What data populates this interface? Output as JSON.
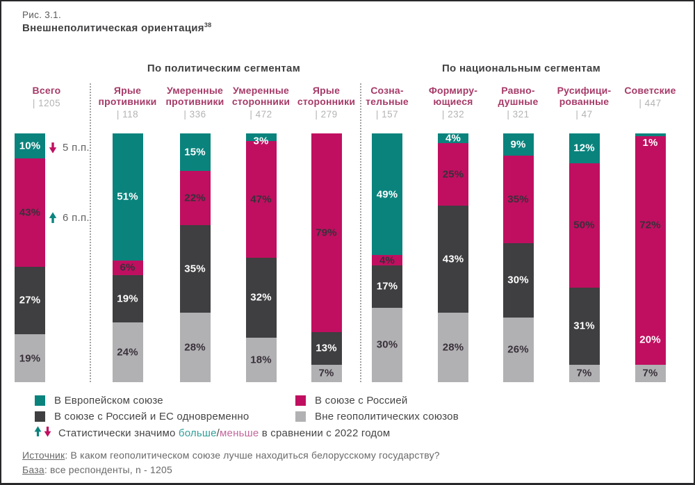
{
  "palette": {
    "eu": "#0a837d",
    "russia": "#c00f60",
    "both": "#3f3e40",
    "none": "#b1b1b3",
    "header_text": "#a63a68",
    "count_text": "#b3b3b5",
    "more_text": "#2f9e99",
    "less_text": "#c2679c"
  },
  "title": {
    "line1": "Рис. 3.1.",
    "line2": "Внешнеполитическая ориентация",
    "footnote": "38"
  },
  "sections": [
    {
      "label": "По политическим сегментам"
    },
    {
      "label": "По национальным сегментам"
    }
  ],
  "annotations": [
    {
      "dir": "down",
      "color": "russia",
      "text": "5 п.п."
    },
    {
      "dir": "up",
      "color": "eu",
      "text": "6 п.п."
    }
  ],
  "columns": [
    {
      "name_lines": [
        "Всего"
      ],
      "count": "| 1205",
      "segments": [
        {
          "value": 10,
          "label": "10%",
          "color": "eu",
          "text": "light"
        },
        {
          "value": 43,
          "label": "43%",
          "color": "russia",
          "text": "dark"
        },
        {
          "value": 27,
          "label": "27%",
          "color": "both",
          "text": "light"
        },
        {
          "value": 19,
          "label": "19%",
          "color": "none",
          "text": "dark"
        }
      ]
    },
    {
      "name_lines": [
        "Ярые",
        "противники"
      ],
      "count": "| 118",
      "segments": [
        {
          "value": 51,
          "label": "51%",
          "color": "eu",
          "text": "light"
        },
        {
          "value": 6,
          "label": "6%",
          "color": "russia",
          "text": "dark"
        },
        {
          "value": 19,
          "label": "19%",
          "color": "both",
          "text": "light"
        },
        {
          "value": 24,
          "label": "24%",
          "color": "none",
          "text": "dark"
        }
      ]
    },
    {
      "name_lines": [
        "Умеренные",
        "противники"
      ],
      "count": "| 336",
      "segments": [
        {
          "value": 15,
          "label": "15%",
          "color": "eu",
          "text": "light"
        },
        {
          "value": 22,
          "label": "22%",
          "color": "russia",
          "text": "dark"
        },
        {
          "value": 35,
          "label": "35%",
          "color": "both",
          "text": "light"
        },
        {
          "value": 28,
          "label": "28%",
          "color": "none",
          "text": "dark"
        }
      ]
    },
    {
      "name_lines": [
        "Умеренные",
        "сторонники"
      ],
      "count": "| 472",
      "segments": [
        {
          "value": 3,
          "label": "3%",
          "color": "eu",
          "text": "light",
          "label_pos": "straddle"
        },
        {
          "value": 47,
          "label": "47%",
          "color": "russia",
          "text": "dark"
        },
        {
          "value": 32,
          "label": "32%",
          "color": "both",
          "text": "light"
        },
        {
          "value": 18,
          "label": "18%",
          "color": "none",
          "text": "dark"
        }
      ]
    },
    {
      "name_lines": [
        "Ярые",
        "сторонники"
      ],
      "count": "| 279",
      "segments": [
        {
          "value": 79,
          "label": "79%",
          "color": "russia",
          "text": "dark"
        },
        {
          "value": 13,
          "label": "13%",
          "color": "both",
          "text": "light"
        },
        {
          "value": 7,
          "label": "7%",
          "color": "none",
          "text": "dark"
        }
      ]
    },
    {
      "name_lines": [
        "Созна-",
        "тельные"
      ],
      "count": "| 157",
      "segments": [
        {
          "value": 49,
          "label": "49%",
          "color": "eu",
          "text": "light"
        },
        {
          "value": 4,
          "label": "4%",
          "color": "russia",
          "text": "dark"
        },
        {
          "value": 17,
          "label": "17%",
          "color": "both",
          "text": "light"
        },
        {
          "value": 30,
          "label": "30%",
          "color": "none",
          "text": "dark"
        }
      ]
    },
    {
      "name_lines": [
        "Формиру-",
        "ющиеся"
      ],
      "count": "| 232",
      "segments": [
        {
          "value": 4,
          "label": "4%",
          "color": "eu",
          "text": "light"
        },
        {
          "value": 25,
          "label": "25%",
          "color": "russia",
          "text": "dark"
        },
        {
          "value": 43,
          "label": "43%",
          "color": "both",
          "text": "light"
        },
        {
          "value": 28,
          "label": "28%",
          "color": "none",
          "text": "dark"
        }
      ]
    },
    {
      "name_lines": [
        "Равно-",
        "душные"
      ],
      "count": "| 321",
      "segments": [
        {
          "value": 9,
          "label": "9%",
          "color": "eu",
          "text": "light"
        },
        {
          "value": 35,
          "label": "35%",
          "color": "russia",
          "text": "dark"
        },
        {
          "value": 30,
          "label": "30%",
          "color": "both",
          "text": "light"
        },
        {
          "value": 26,
          "label": "26%",
          "color": "none",
          "text": "dark"
        }
      ]
    },
    {
      "name_lines": [
        "Русифици-",
        "рованные"
      ],
      "count": "| 47",
      "segments": [
        {
          "value": 12,
          "label": "12%",
          "color": "eu",
          "text": "light"
        },
        {
          "value": 50,
          "label": "50%",
          "color": "russia",
          "text": "dark"
        },
        {
          "value": 31,
          "label": "31%",
          "color": "both",
          "text": "light"
        },
        {
          "value": 7,
          "label": "7%",
          "color": "none",
          "text": "dark"
        }
      ]
    },
    {
      "name_lines": [
        "Советские"
      ],
      "count": "| 447",
      "segments": [
        {
          "value": 1,
          "label": "1%",
          "color": "eu",
          "text": "light",
          "label_pos": "below"
        },
        {
          "value": 72,
          "label": "72%",
          "color": "russia",
          "text": "dark"
        },
        {
          "value": 20,
          "label": "20%",
          "color": "russia",
          "text": "light"
        },
        {
          "value": 7,
          "label": "7%",
          "color": "none",
          "text": "dark"
        }
      ]
    }
  ],
  "legend": {
    "items": [
      {
        "label": "В Европейском союзе",
        "color": "eu"
      },
      {
        "label": "В союзе с Россией",
        "color": "russia"
      },
      {
        "label": "В союзе с Россией и ЕС одновременно",
        "color": "both"
      },
      {
        "label": "Вне геополитических союзов",
        "color": "none"
      }
    ],
    "note": {
      "prefix": "Статистически значимо ",
      "more": "больше",
      "slash": "/",
      "less": "меньше",
      "suffix": " в сравнении с 2022 годом"
    }
  },
  "footer": {
    "source_label": "Источник",
    "source_text": ": В каком геополитическом союзе лучше находиться белорусскому государству?",
    "base_label": "База",
    "base_text": ": все респонденты, n - 1205"
  },
  "chart_data": {
    "type": "bar",
    "stacked": true,
    "unit": "percent",
    "title": "Рис. 3.1. Внешнеполитическая ориентация (38)",
    "group_headers": [
      "По политическим сегментам",
      "По национальным сегментам"
    ],
    "categories": [
      "Всего",
      "Ярые противники",
      "Умеренные противники",
      "Умеренные сторонники",
      "Ярые сторонники",
      "Сознательные",
      "Формирующиеся",
      "Равнодушные",
      "Русифицированные",
      "Советские"
    ],
    "sample_sizes": [
      1205,
      118,
      336,
      472,
      279,
      157,
      232,
      321,
      47,
      447
    ],
    "series": [
      {
        "name": "В Европейском союзе",
        "values": [
          10,
          51,
          15,
          3,
          0,
          49,
          4,
          9,
          12,
          1
        ]
      },
      {
        "name": "В союзе с Россией",
        "values": [
          43,
          6,
          22,
          47,
          79,
          4,
          25,
          35,
          50,
          72
        ]
      },
      {
        "name": "В союзе с Россией и ЕС одновременно",
        "values": [
          27,
          19,
          35,
          32,
          13,
          17,
          43,
          30,
          31,
          20
        ]
      },
      {
        "name": "Вне геополитических союзов",
        "values": [
          19,
          24,
          28,
          18,
          7,
          30,
          28,
          26,
          7,
          7
        ]
      }
    ],
    "annotations": [
      {
        "category": "Всего",
        "series": "В Европейском союзе",
        "change": "-5 п.п."
      },
      {
        "category": "Всего",
        "series": "В союзе с Россией",
        "change": "+6 п.п."
      }
    ],
    "legend_position": "bottom",
    "grid": false,
    "note": "Статистически значимо больше/меньше в сравнении с 2022 годом",
    "source": "В каком геополитическом союзе лучше находиться белорусскому государству?",
    "base": "все респонденты, n - 1205"
  }
}
